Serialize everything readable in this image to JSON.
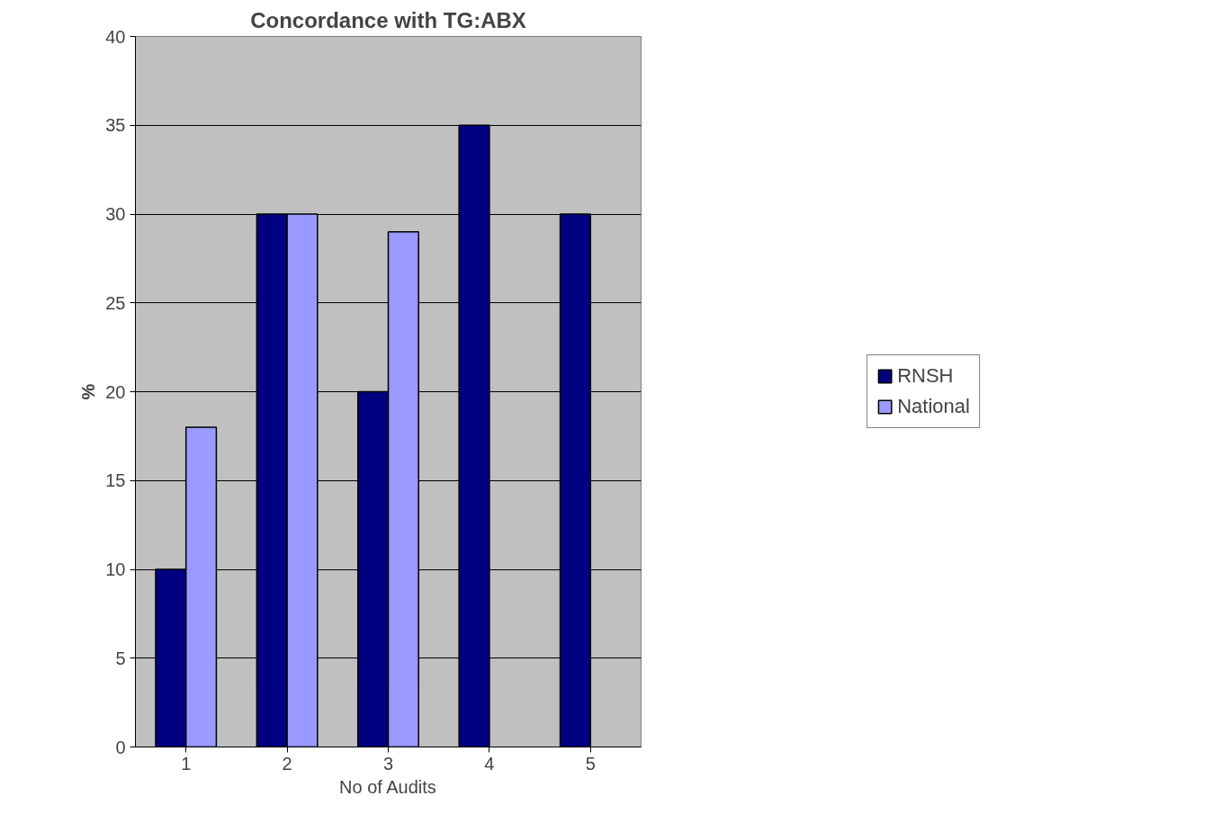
{
  "chart_data": {
    "type": "bar",
    "title": "Concordance with TG:ABX",
    "xlabel": "No of Audits",
    "ylabel": "%",
    "categories": [
      "1",
      "2",
      "3",
      "4",
      "5"
    ],
    "series": [
      {
        "name": "RNSH",
        "color": "#000080",
        "values": [
          10,
          30,
          20,
          35,
          30
        ]
      },
      {
        "name": "National",
        "color": "#9999ff",
        "values": [
          18,
          30,
          29,
          null,
          null
        ]
      }
    ],
    "ylim": [
      0,
      40
    ],
    "yticks": [
      0,
      5,
      10,
      15,
      20,
      25,
      30,
      35,
      40
    ],
    "grid": "y",
    "legend": "right"
  }
}
